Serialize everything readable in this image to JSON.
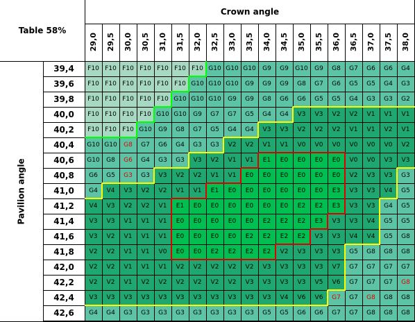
{
  "table_label": "Table 58%",
  "crown_label": "Crown angle",
  "pavilion_label": "Pavilion angle",
  "crown_angles": [
    "29,0",
    "29,5",
    "30,0",
    "30,5",
    "31,0",
    "31,5",
    "32,0",
    "32,5",
    "33,0",
    "33,5",
    "34,0",
    "34,5",
    "35,0",
    "35,5",
    "36,0",
    "36,5",
    "37,0",
    "37,5",
    "38,0"
  ],
  "pavilion_angles": [
    "39,4",
    "39,6",
    "39,8",
    "40,0",
    "40,2",
    "40,4",
    "40,6",
    "40,8",
    "41,0",
    "41,2",
    "41,4",
    "41,6",
    "41,8",
    "42,0",
    "42,2",
    "42,4",
    "42,6"
  ],
  "grades": [
    [
      "F10",
      "F10",
      "F10",
      "F10",
      "F10",
      "F10",
      "F10",
      "G10",
      "G10",
      "G10",
      "G9",
      "G9",
      "G10",
      "G9",
      "G8",
      "G7",
      "G6",
      "G6",
      "G4"
    ],
    [
      "F10",
      "F10",
      "F10",
      "F10",
      "F10",
      "F10",
      "G10",
      "G10",
      "G10",
      "G9",
      "G9",
      "G9",
      "G8",
      "G7",
      "G6",
      "G5",
      "G5",
      "G4",
      "G3"
    ],
    [
      "F10",
      "F10",
      "F10",
      "F10",
      "F10",
      "G10",
      "G10",
      "G10",
      "G9",
      "G9",
      "G8",
      "G6",
      "G6",
      "G5",
      "G5",
      "G4",
      "G3",
      "G3",
      "G2"
    ],
    [
      "F10",
      "F10",
      "F10",
      "F10",
      "G10",
      "G10",
      "G9",
      "G7",
      "G7",
      "G5",
      "G4",
      "G4",
      "V3",
      "V3",
      "V2",
      "V2",
      "V1",
      "V1",
      "V1"
    ],
    [
      "F10",
      "F10",
      "F10",
      "G10",
      "G9",
      "G8",
      "G7",
      "G5",
      "G4",
      "G4",
      "V3",
      "V3",
      "V2",
      "V2",
      "V2",
      "V1",
      "V1",
      "V2",
      "V1"
    ],
    [
      "G10",
      "G10",
      "G8",
      "G7",
      "G6",
      "G4",
      "G3",
      "G3",
      "V2",
      "V2",
      "V1",
      "V1",
      "V0",
      "V0",
      "V0",
      "V0",
      "V0",
      "V0",
      "V2"
    ],
    [
      "G10",
      "G8",
      "G6",
      "G4",
      "G3",
      "G3",
      "V3",
      "V2",
      "V1",
      "V1",
      "E1",
      "E0",
      "E0",
      "E0",
      "E0",
      "V0",
      "V0",
      "V3",
      "V3"
    ],
    [
      "G6",
      "G5",
      "G3",
      "G3",
      "V3",
      "V2",
      "V2",
      "V1",
      "V1",
      "E0",
      "E0",
      "E0",
      "E0",
      "E0",
      "E0",
      "V2",
      "V3",
      "V3",
      "G3"
    ],
    [
      "G4",
      "V4",
      "V3",
      "V2",
      "V2",
      "V1",
      "V1",
      "E1",
      "E0",
      "E0",
      "E0",
      "E0",
      "E0",
      "E0",
      "E3",
      "V3",
      "V3",
      "V4",
      "G5"
    ],
    [
      "V4",
      "V3",
      "V2",
      "V2",
      "V1",
      "E1",
      "E0",
      "E0",
      "E0",
      "E0",
      "E0",
      "E0",
      "E2",
      "E2",
      "E3",
      "V3",
      "V3",
      "G4",
      "G5"
    ],
    [
      "V3",
      "V3",
      "V1",
      "V1",
      "V1",
      "E0",
      "E0",
      "E0",
      "E0",
      "E0",
      "E2",
      "E2",
      "E2",
      "E3",
      "V3",
      "V3",
      "V4",
      "G5",
      "G5"
    ],
    [
      "V3",
      "V2",
      "V1",
      "V1",
      "V1",
      "E0",
      "E0",
      "E0",
      "E0",
      "E2",
      "E2",
      "E2",
      "E2",
      "V3",
      "V3",
      "V4",
      "V4",
      "G5",
      "G8"
    ],
    [
      "V2",
      "V2",
      "V1",
      "V1",
      "V0",
      "E0",
      "E0",
      "E2",
      "E2",
      "E2",
      "E2",
      "V2",
      "V3",
      "V3",
      "V3",
      "G5",
      "G8",
      "G8",
      "G8"
    ],
    [
      "V2",
      "V2",
      "V1",
      "V1",
      "V1",
      "V2",
      "V2",
      "V2",
      "V2",
      "V2",
      "V3",
      "V3",
      "V3",
      "V3",
      "V7",
      "G7",
      "G7",
      "G7",
      "G7"
    ],
    [
      "V2",
      "V2",
      "V1",
      "V2",
      "V2",
      "V2",
      "V2",
      "V2",
      "V2",
      "V3",
      "V3",
      "V3",
      "V3",
      "V5",
      "V6",
      "G7",
      "G7",
      "G7",
      "G8"
    ],
    [
      "V3",
      "V3",
      "V3",
      "V3",
      "V3",
      "V3",
      "V3",
      "V3",
      "V3",
      "V3",
      "V3",
      "V4",
      "V6",
      "V6",
      "G7",
      "G7",
      "G8",
      "G8",
      "G8"
    ],
    [
      "G4",
      "G4",
      "G3",
      "G3",
      "G3",
      "G3",
      "G3",
      "G3",
      "G3",
      "G3",
      "G5",
      "G5",
      "G6",
      "G6",
      "G7",
      "G7",
      "G8",
      "G8",
      "G8"
    ]
  ],
  "red_text": [
    "5,2",
    "6,2",
    "7,2",
    "14,18",
    "15,14",
    "15,16"
  ],
  "colors": {
    "F": "#a6d8c2",
    "G": "#5cc4a4",
    "V": "#1ea870",
    "E": "#00bf50",
    "grid": "#000000",
    "yellow": "#ffff00",
    "orange": "#cc8a00",
    "red": "#dd0000",
    "green": "#00ff00"
  }
}
